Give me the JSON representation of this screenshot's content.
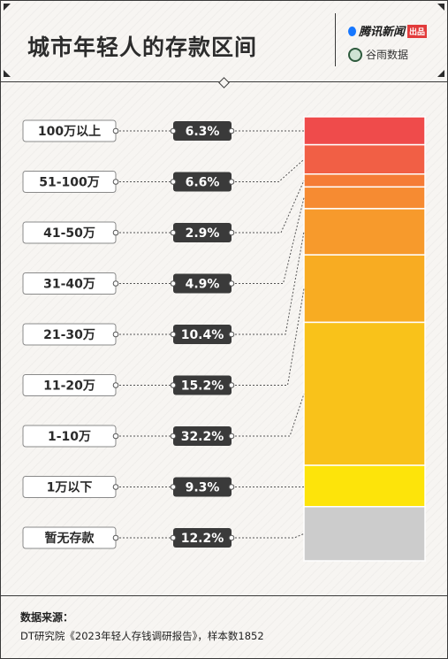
{
  "header": {
    "title": "城市年轻人的存款区间",
    "brand_primary": "腾讯新闻",
    "brand_primary_tag": "出品",
    "brand_secondary": "谷雨数据"
  },
  "chart_data": {
    "type": "bar",
    "subtype": "100% stacked column with labeled segments",
    "categories": [
      "100万以上",
      "51-100万",
      "41-50万",
      "31-40万",
      "21-30万",
      "11-20万",
      "1-10万",
      "1万以下",
      "暂无存款"
    ],
    "values": [
      6.3,
      6.6,
      2.9,
      4.9,
      10.4,
      15.2,
      32.2,
      9.3,
      12.2
    ],
    "value_labels": [
      "6.3%",
      "6.6%",
      "2.9%",
      "4.9%",
      "10.4%",
      "15.2%",
      "32.2%",
      "9.3%",
      "12.2%"
    ],
    "unit": "%",
    "colors": [
      "#ef4b4b",
      "#f15f45",
      "#f57c36",
      "#f68b32",
      "#f79a2c",
      "#f8ac22",
      "#f9c21a",
      "#fde40a",
      "#cccccc"
    ],
    "legend": "none",
    "grid": false
  },
  "footer": {
    "source_label": "数据来源：",
    "source_text": "DT研究院《2023年轻人存钱调研报告》，样本数1852"
  }
}
